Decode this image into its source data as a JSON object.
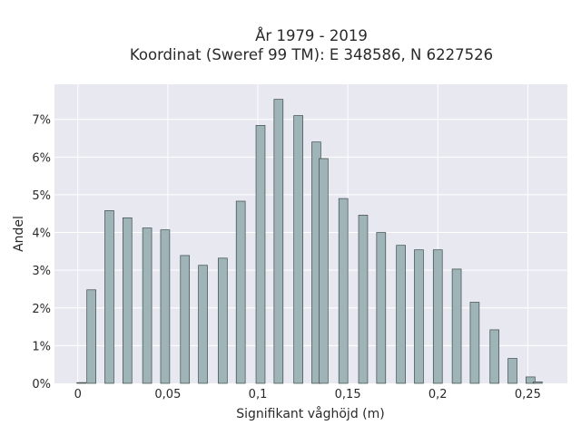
{
  "chart_data": {
    "type": "bar",
    "title_line1": "År 1979 - 2019",
    "title_line2": "Koordinat (Sweref 99 TM): E 348586, N 6227526",
    "xlabel": "Signifikant våghöjd (m)",
    "ylabel": "Andel",
    "xlim": [
      -0.013,
      0.272
    ],
    "ylim": [
      0,
      0.0793
    ],
    "bar_width": 0.005,
    "x_ticks": [
      0,
      0.05,
      0.1,
      0.15,
      0.2,
      0.25
    ],
    "x_tick_labels": [
      "0",
      "0,05",
      "0,1",
      "0,15",
      "0,2",
      "0,25"
    ],
    "y_ticks": [
      0,
      0.01,
      0.02,
      0.03,
      0.04,
      0.05,
      0.06,
      0.07
    ],
    "y_tick_labels": [
      "0%",
      "1%",
      "2%",
      "3%",
      "4%",
      "5%",
      "6%",
      "7%"
    ],
    "grid": true,
    "background_color": "#e8e8f0",
    "bar_color": "#9fb4b6",
    "x": [
      0.002,
      0.0075,
      0.0175,
      0.0275,
      0.0385,
      0.0485,
      0.0595,
      0.0695,
      0.0805,
      0.0905,
      0.1015,
      0.1115,
      0.1225,
      0.1325,
      0.1365,
      0.1475,
      0.1585,
      0.1685,
      0.1795,
      0.1895,
      0.2,
      0.2105,
      0.2205,
      0.2315,
      0.2415,
      0.2515,
      0.2555
    ],
    "values": [
      0.0002,
      0.0248,
      0.0458,
      0.0439,
      0.0412,
      0.0407,
      0.0339,
      0.0313,
      0.0332,
      0.0483,
      0.0684,
      0.0753,
      0.071,
      0.064,
      0.0596,
      0.049,
      0.0446,
      0.04,
      0.0366,
      0.0354,
      0.0354,
      0.0303,
      0.0215,
      0.0142,
      0.0066,
      0.0017,
      0.0004
    ]
  }
}
